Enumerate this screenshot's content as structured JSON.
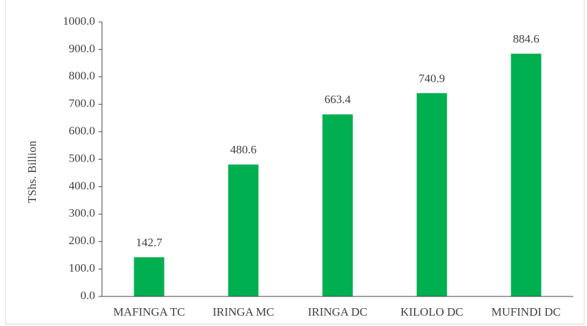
{
  "chart_data": {
    "type": "bar",
    "y_label": "TShs. Billion",
    "categories": [
      "MAFINGA TC",
      "IRINGA MC",
      "IRINGA DC",
      "KILOLO DC",
      "MUFINDI DC"
    ],
    "values": [
      142.7,
      480.6,
      663.4,
      740.9,
      884.6
    ],
    "color": "#00b050",
    "ylim": [
      0,
      1000
    ],
    "yticks": [
      {
        "value": 0,
        "label": "0.0"
      },
      {
        "value": 100,
        "label": "100.0"
      },
      {
        "value": 200,
        "label": "200.0"
      },
      {
        "value": 300,
        "label": "300.0"
      },
      {
        "value": 400,
        "label": "400.0"
      },
      {
        "value": 500,
        "label": "500.0"
      },
      {
        "value": 600,
        "label": "600.0"
      },
      {
        "value": 700,
        "label": "700.0"
      },
      {
        "value": 800,
        "label": "800.0"
      },
      {
        "value": 900,
        "label": "900.0"
      },
      {
        "value": 1000,
        "label": "1000.0"
      }
    ],
    "grid": false
  }
}
